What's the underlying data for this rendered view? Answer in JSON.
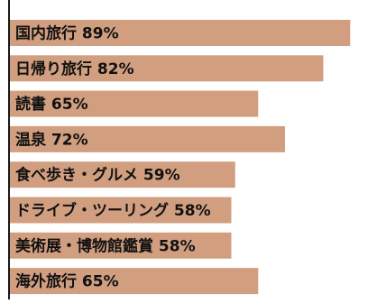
{
  "chart_data": {
    "type": "bar",
    "orientation": "horizontal",
    "categories": [
      "国内旅行",
      "日帰り旅行",
      "読書",
      "温泉",
      "食べ歩き・グルメ",
      "ドライブ・ツーリング",
      "美術展・博物館鑑賞",
      "海外旅行"
    ],
    "values": [
      89,
      82,
      65,
      72,
      59,
      58,
      58,
      65
    ],
    "labels": [
      "国内旅行 89%",
      "日帰り旅行 82%",
      "読書 65%",
      "温泉 72%",
      "食べ歩き・グルメ 59%",
      "ドライブ・ツーリング 58%",
      "美術展・博物館鑑賞 58%",
      "海外旅行 65%"
    ],
    "unit": "%",
    "xlim": [
      0,
      100
    ],
    "grid": false,
    "legend": "none",
    "colors": {
      "bar": "#d19f80",
      "baseline": "#1a1a1a",
      "text": "#111111"
    }
  }
}
